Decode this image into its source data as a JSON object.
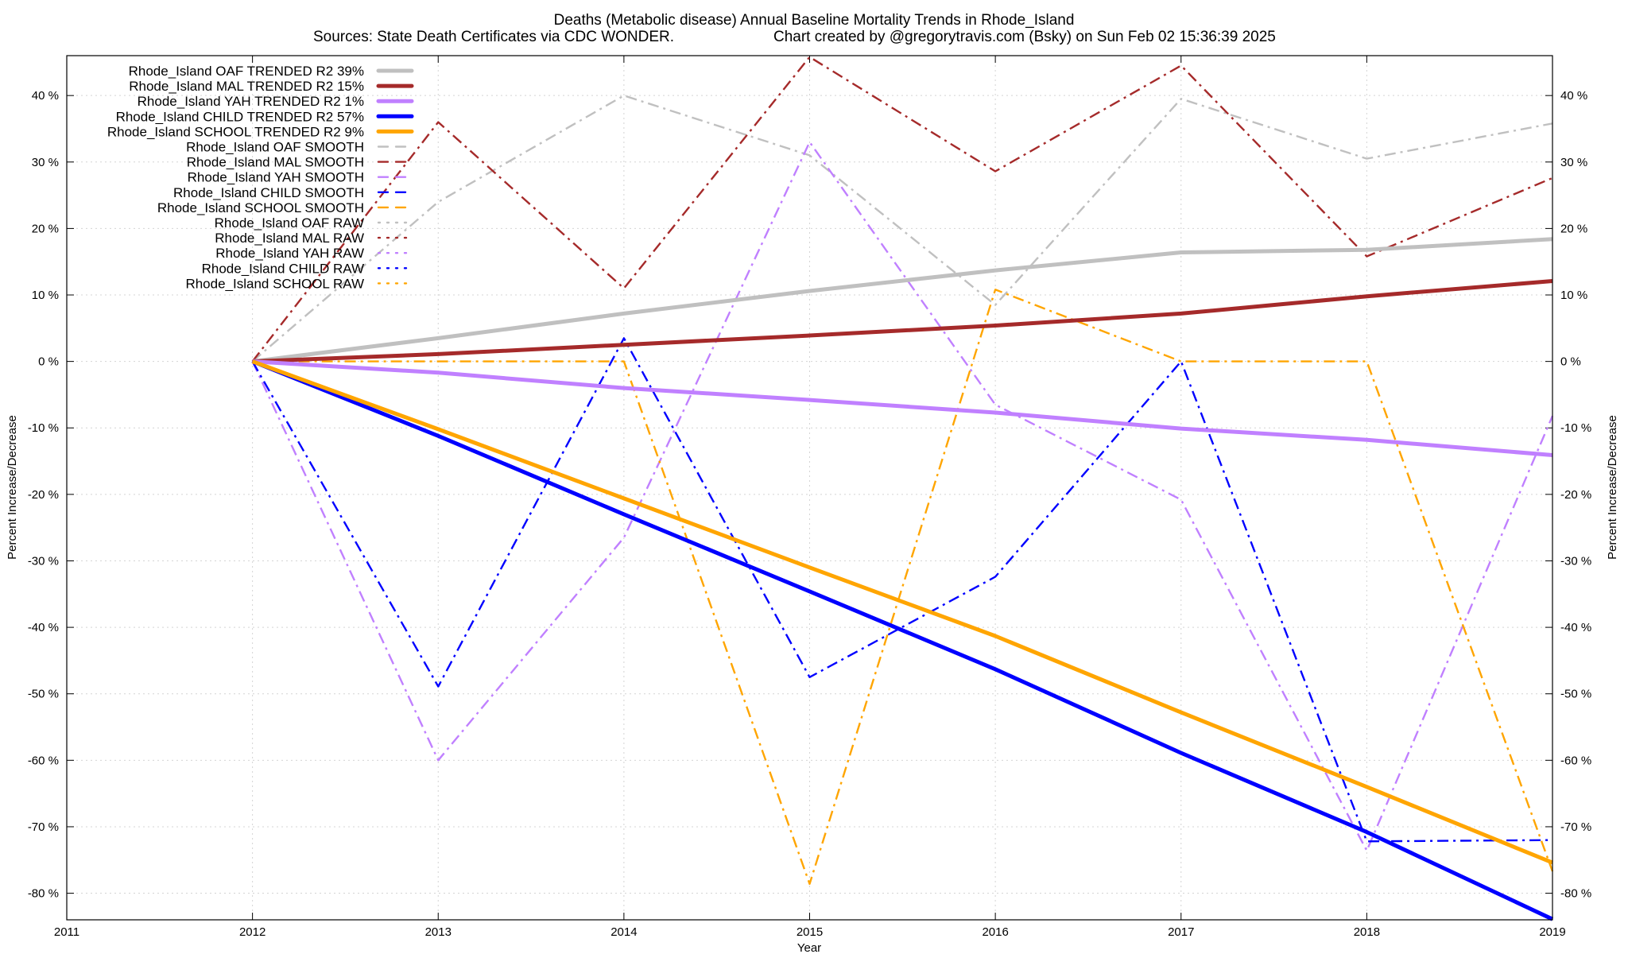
{
  "chart_data": {
    "type": "line",
    "title": "Deaths (Metabolic disease)  Annual Baseline Mortality Trends in Rhode_Island",
    "subtitle_left": "Sources: State Death Certificates via CDC WONDER.",
    "subtitle_right": "Chart created by @gregorytravis.com (Bsky) on Sun Feb 02 15:36:39 2025",
    "xlabel": "Year",
    "ylabel": "Percent Increase/Decrease",
    "y2label": "Percent Increase/Decrease",
    "xlim": [
      2011,
      2019
    ],
    "ylim": [
      -84,
      46
    ],
    "x_ticks": [
      "2011",
      "2012",
      "2013",
      "2014",
      "2015",
      "2016",
      "2017",
      "2018",
      "2019"
    ],
    "y_ticks": [
      "40 %",
      "30 %",
      "20 %",
      "10 %",
      "0 %",
      "-10 %",
      "-20 %",
      "-30 %",
      "-40 %",
      "-50 %",
      "-60 %",
      "-70 %",
      "-80 %"
    ],
    "grid": true,
    "legend_position": "top-left",
    "series": [
      {
        "name": "Rhode_Island OAF TRENDED R2  39%",
        "style": "trend",
        "color": "#c0c0c0",
        "x": [
          2012,
          2013,
          2014,
          2015,
          2016,
          2017,
          2018,
          2019
        ],
        "values": [
          0,
          3.5,
          7.2,
          10.6,
          13.7,
          16.4,
          16.8,
          18.4
        ]
      },
      {
        "name": "Rhode_Island MAL TRENDED R2  15%",
        "style": "trend",
        "color": "#a52a2a",
        "x": [
          2012,
          2013,
          2014,
          2015,
          2016,
          2017,
          2018,
          2019
        ],
        "values": [
          0,
          1.1,
          2.5,
          3.9,
          5.4,
          7.2,
          9.8,
          12.1
        ]
      },
      {
        "name": "Rhode_Island YAH TRENDED R2   1%",
        "style": "trend",
        "color": "#c080ff",
        "x": [
          2012,
          2013,
          2014,
          2015,
          2016,
          2017,
          2018,
          2019
        ],
        "values": [
          0,
          -1.7,
          -4.0,
          -5.8,
          -7.7,
          -10.1,
          -11.8,
          -14.1
        ]
      },
      {
        "name": "Rhode_Island CHILD TRENDED R2  57%",
        "style": "trend",
        "color": "#0000ff",
        "x": [
          2012,
          2013,
          2014,
          2015,
          2016,
          2017,
          2018,
          2019
        ],
        "values": [
          0,
          -11.2,
          -23.0,
          -34.6,
          -46.3,
          -58.9,
          -70.8,
          -83.9
        ]
      },
      {
        "name": "Rhode_Island SCHOOL TRENDED R2  9%",
        "style": "trend",
        "color": "#ffa500",
        "x": [
          2012,
          2013,
          2014,
          2015,
          2016,
          2017,
          2018,
          2019
        ],
        "values": [
          0,
          -10.2,
          -20.6,
          -31.0,
          -41.3,
          -52.8,
          -64.0,
          -75.4
        ]
      },
      {
        "name": "Rhode_Island OAF SMOOTH",
        "style": "smooth",
        "color": "#c0c0c0",
        "x": [
          2012,
          2013,
          2014,
          2015,
          2016,
          2017,
          2018,
          2019
        ],
        "values": [
          0,
          24,
          40,
          31,
          8.5,
          39.5,
          30.5,
          35.8
        ]
      },
      {
        "name": "Rhode_Island MAL SMOOTH",
        "style": "smooth",
        "color": "#a52a2a",
        "x": [
          2012,
          2013,
          2014,
          2015,
          2016,
          2017,
          2018,
          2019
        ],
        "values": [
          0,
          36,
          11,
          45.8,
          28.6,
          44.5,
          15.8,
          27.6
        ]
      },
      {
        "name": "Rhode_Island YAH SMOOTH",
        "style": "smooth",
        "color": "#c080ff",
        "x": [
          2012,
          2013,
          2014,
          2015,
          2016,
          2017,
          2018,
          2019
        ],
        "values": [
          0,
          -60,
          -26.5,
          33,
          -6.5,
          -20.8,
          -73.6,
          -8.2
        ]
      },
      {
        "name": "Rhode_Island CHILD SMOOTH",
        "style": "smooth",
        "color": "#0000ff",
        "x": [
          2012,
          2013,
          2014,
          2015,
          2016,
          2017,
          2018,
          2019
        ],
        "values": [
          0,
          -48.9,
          3.5,
          -47.5,
          -32.4,
          0,
          -72.2,
          -72
        ]
      },
      {
        "name": "Rhode_Island SCHOOL SMOOTH",
        "style": "smooth",
        "color": "#ffa500",
        "x": [
          2012,
          2013,
          2014,
          2015,
          2016,
          2017,
          2018,
          2019
        ],
        "values": [
          0,
          0,
          0,
          -78.6,
          10.8,
          0,
          0,
          -76.7
        ]
      },
      {
        "name": "Rhode_Island OAF RAW",
        "style": "raw",
        "color": "#c0c0c0"
      },
      {
        "name": "Rhode_Island MAL RAW",
        "style": "raw",
        "color": "#a52a2a"
      },
      {
        "name": "Rhode_Island YAH RAW",
        "style": "raw",
        "color": "#c080ff"
      },
      {
        "name": "Rhode_Island CHILD RAW",
        "style": "raw",
        "color": "#0000ff"
      },
      {
        "name": "Rhode_Island SCHOOL RAW",
        "style": "raw",
        "color": "#ffa500"
      }
    ]
  }
}
